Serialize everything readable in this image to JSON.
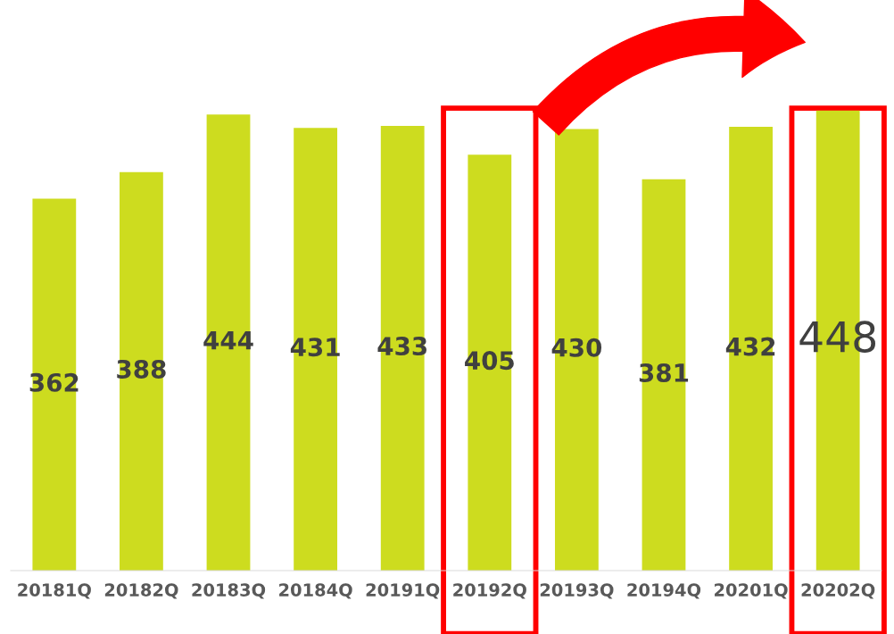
{
  "chart_data": {
    "type": "bar",
    "categories": [
      "20181Q",
      "20182Q",
      "20183Q",
      "20184Q",
      "20191Q",
      "20192Q",
      "20193Q",
      "20194Q",
      "20201Q",
      "20202Q"
    ],
    "values": [
      362,
      388,
      444,
      431,
      433,
      405,
      430,
      381,
      432,
      448
    ],
    "color": "#cddc1f",
    "data_labels": true,
    "tick_labels": "x",
    "grid": false,
    "legend": false
  }
}
